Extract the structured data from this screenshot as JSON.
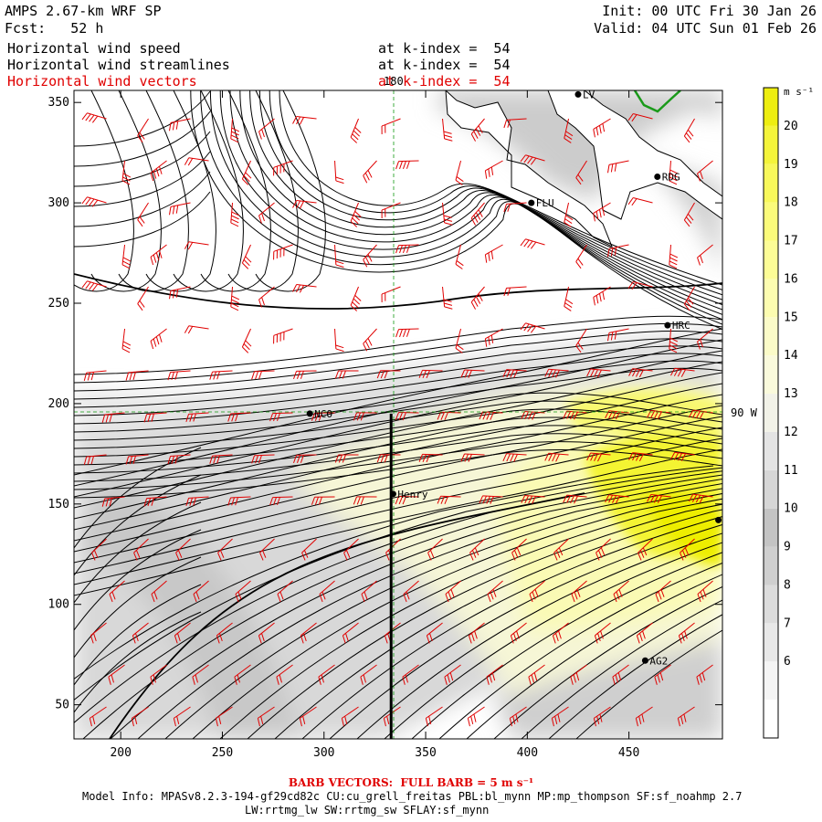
{
  "header": {
    "model": "AMPS 2.67-km WRF SP",
    "fcst": "Fcst:   52 h",
    "init": "Init: 00 UTC Fri 30 Jan 26",
    "valid": "Valid: 04 UTC Sun 01 Feb 26",
    "fields": [
      {
        "name": "Horizontal wind speed",
        "level": "at k-index =  54",
        "color": "#000000"
      },
      {
        "name": "Horizontal wind streamlines",
        "level": "at k-index =  54",
        "color": "#000000"
      },
      {
        "name": "Horizontal wind vectors",
        "level": "at k-index =  54",
        "color": "#e00000"
      }
    ]
  },
  "map": {
    "x_ticks": [
      "200",
      "250",
      "300",
      "350",
      "400",
      "450"
    ],
    "y_ticks": [
      "350",
      "300",
      "250",
      "200",
      "150",
      "100",
      "50"
    ],
    "x_range": [
      177,
      496
    ],
    "y_range": [
      33,
      356
    ],
    "meridian_label": "180",
    "parallel_label": "90 W",
    "stations": [
      {
        "name": "LV",
        "x": 425,
        "y": 354
      },
      {
        "name": "RDG",
        "x": 464,
        "y": 313
      },
      {
        "name": "FLU",
        "x": 402,
        "y": 300
      },
      {
        "name": "HRC",
        "x": 469,
        "y": 239
      },
      {
        "name": "NCO",
        "x": 293,
        "y": 195
      },
      {
        "name": "Henry",
        "x": 334,
        "y": 155
      },
      {
        "name": "",
        "x": 494,
        "y": 142
      },
      {
        "name": "AG2",
        "x": 458,
        "y": 72
      }
    ],
    "cross_section": {
      "x": 333,
      "y_from": 33,
      "y_to": 195
    }
  },
  "colorbar": {
    "unit": "m s⁻¹",
    "levels": [
      {
        "label": "",
        "color": "#ffffff"
      },
      {
        "label": "6",
        "color": "#f4f4f4"
      },
      {
        "label": "7",
        "color": "#e8e8e8"
      },
      {
        "label": "8",
        "color": "#dcdcdc"
      },
      {
        "label": "9",
        "color": "#cfcfcf"
      },
      {
        "label": "10",
        "color": "#c4c4c4"
      },
      {
        "label": "11",
        "color": "#d6d6d6"
      },
      {
        "label": "12",
        "color": "#e4e4e4"
      },
      {
        "label": "13",
        "color": "#f2f2e8"
      },
      {
        "label": "14",
        "color": "#fafadc"
      },
      {
        "label": "15",
        "color": "#fbfbc8"
      },
      {
        "label": "16",
        "color": "#fcfcb0"
      },
      {
        "label": "17",
        "color": "#fcfc96"
      },
      {
        "label": "18",
        "color": "#fbfb7a"
      },
      {
        "label": "19",
        "color": "#f8f85a"
      },
      {
        "label": "20",
        "color": "#f4f43a"
      },
      {
        "label": "",
        "color": "#eeee10"
      }
    ]
  },
  "footer": {
    "barb_note": "BARB VECTORS:  FULL BARB = 5 m s⁻¹",
    "model_info": "Model Info: MPASv8.2.3-194-gf29cd82c CU:cu_grell_freitas PBL:bl_mynn MP:mp_thompson SF:sf_noahmp 2.7",
    "model_info2": "LW:rrtmg_lw SW:rrtmg_sw SFLAY:sf_mynn"
  }
}
